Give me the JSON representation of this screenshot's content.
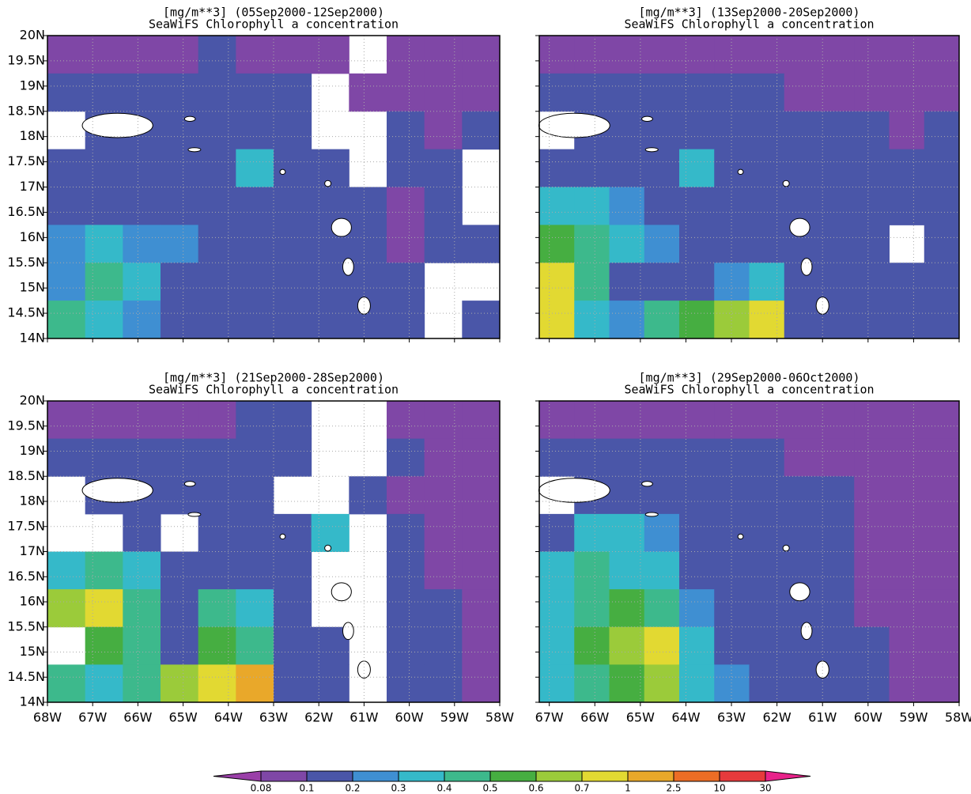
{
  "chart_data": [
    {
      "type": "heatmap",
      "title": "[mg/m**3] (05Sep2000-12Sep2000)",
      "subtitle": "SeaWiFS Chlorophyll a concentration",
      "xlim": [
        -68,
        -58
      ],
      "ylim": [
        14,
        20
      ],
      "grid": true,
      "yticks": [
        {
          "value": 14,
          "label": "14N"
        },
        {
          "value": 14.5,
          "label": "14.5N"
        },
        {
          "value": 15,
          "label": "15N"
        },
        {
          "value": 15.5,
          "label": "15.5N"
        },
        {
          "value": 16,
          "label": "16N"
        },
        {
          "value": 16.5,
          "label": "16.5N"
        },
        {
          "value": 17,
          "label": "17N"
        },
        {
          "value": 17.5,
          "label": "17.5N"
        },
        {
          "value": 18,
          "label": "18N"
        },
        {
          "value": 18.5,
          "label": "18.5N"
        },
        {
          "value": 19,
          "label": "19N"
        },
        {
          "value": 19.5,
          "label": "19.5N"
        },
        {
          "value": 20,
          "label": "20N"
        }
      ],
      "values": [
        [
          0.09,
          0.09,
          0.09,
          0.09,
          0.15,
          0.09,
          0.09,
          0.09,
          null,
          0.09,
          0.09,
          0.09
        ],
        [
          0.15,
          0.15,
          0.15,
          0.15,
          0.15,
          0.15,
          0.15,
          null,
          0.09,
          0.09,
          0.09,
          0.09
        ],
        [
          null,
          0.15,
          0.15,
          0.15,
          0.15,
          0.15,
          0.15,
          null,
          null,
          0.15,
          0.09,
          0.15
        ],
        [
          0.15,
          0.15,
          0.15,
          0.15,
          0.15,
          0.35,
          0.15,
          0.15,
          null,
          0.15,
          0.15,
          null
        ],
        [
          0.15,
          0.15,
          0.15,
          0.15,
          0.15,
          0.15,
          0.15,
          0.15,
          0.15,
          0.09,
          0.15,
          null
        ],
        [
          0.25,
          0.35,
          0.25,
          0.25,
          0.15,
          0.15,
          0.15,
          0.15,
          0.15,
          0.09,
          0.15,
          0.15
        ],
        [
          0.25,
          0.45,
          0.35,
          0.15,
          0.15,
          0.15,
          0.15,
          0.15,
          0.15,
          0.15,
          null,
          null
        ],
        [
          0.45,
          0.35,
          0.25,
          0.15,
          0.15,
          0.15,
          0.15,
          0.15,
          0.15,
          0.15,
          null,
          0.15
        ]
      ]
    },
    {
      "type": "heatmap",
      "title": "[mg/m**3] (13Sep2000-20Sep2000)",
      "subtitle": "SeaWiFS Chlorophyll a concentration",
      "xlim": [
        -67.22,
        -58
      ],
      "ylim": [
        14,
        20
      ],
      "grid": true,
      "values": [
        [
          0.09,
          0.09,
          0.09,
          0.09,
          0.09,
          0.09,
          0.09,
          0.09,
          0.09,
          0.09,
          0.09,
          0.09
        ],
        [
          0.15,
          0.15,
          0.15,
          0.15,
          0.15,
          0.15,
          0.15,
          0.09,
          0.09,
          0.09,
          0.09,
          0.09
        ],
        [
          null,
          0.15,
          0.15,
          0.15,
          0.15,
          0.15,
          0.15,
          0.15,
          0.15,
          0.15,
          0.09,
          0.15
        ],
        [
          0.15,
          0.15,
          0.15,
          0.15,
          0.35,
          0.15,
          0.15,
          0.15,
          0.15,
          0.15,
          0.15,
          0.15
        ],
        [
          0.35,
          0.35,
          0.25,
          0.15,
          0.15,
          0.15,
          0.15,
          0.15,
          0.15,
          0.15,
          0.15,
          0.15
        ],
        [
          0.55,
          0.45,
          0.35,
          0.25,
          0.15,
          0.15,
          0.15,
          0.15,
          0.15,
          0.15,
          null,
          0.15
        ],
        [
          0.85,
          0.45,
          0.15,
          0.15,
          0.15,
          0.25,
          0.35,
          0.15,
          0.15,
          0.15,
          0.15,
          0.15
        ],
        [
          0.85,
          0.35,
          0.25,
          0.45,
          0.55,
          0.65,
          0.85,
          0.15,
          0.15,
          0.15,
          0.15,
          0.15
        ]
      ]
    },
    {
      "type": "heatmap",
      "title": "[mg/m**3] (21Sep2000-28Sep2000)",
      "subtitle": "SeaWiFS Chlorophyll a concentration",
      "xlim": [
        -68,
        -58
      ],
      "ylim": [
        14,
        20
      ],
      "grid": true,
      "xticks": [
        {
          "value": -68,
          "label": "68W"
        },
        {
          "value": -67,
          "label": "67W"
        },
        {
          "value": -66,
          "label": "66W"
        },
        {
          "value": -65,
          "label": "65W"
        },
        {
          "value": -64,
          "label": "64W"
        },
        {
          "value": -63,
          "label": "63W"
        },
        {
          "value": -62,
          "label": "62W"
        },
        {
          "value": -61,
          "label": "61W"
        },
        {
          "value": -60,
          "label": "60W"
        },
        {
          "value": -59,
          "label": "59W"
        },
        {
          "value": -58,
          "label": "58W"
        }
      ],
      "yticks": [
        {
          "value": 14,
          "label": "14N"
        },
        {
          "value": 14.5,
          "label": "14.5N"
        },
        {
          "value": 15,
          "label": "15N"
        },
        {
          "value": 15.5,
          "label": "15.5N"
        },
        {
          "value": 16,
          "label": "16N"
        },
        {
          "value": 16.5,
          "label": "16.5N"
        },
        {
          "value": 17,
          "label": "17N"
        },
        {
          "value": 17.5,
          "label": "17.5N"
        },
        {
          "value": 18,
          "label": "18N"
        },
        {
          "value": 18.5,
          "label": "18.5N"
        },
        {
          "value": 19,
          "label": "19N"
        },
        {
          "value": 19.5,
          "label": "19.5N"
        },
        {
          "value": 20,
          "label": "20N"
        }
      ],
      "values": [
        [
          0.09,
          0.09,
          0.09,
          0.09,
          0.09,
          0.15,
          0.15,
          null,
          null,
          0.09,
          0.09,
          0.09
        ],
        [
          0.15,
          0.15,
          0.15,
          0.15,
          0.15,
          0.15,
          0.15,
          null,
          null,
          0.15,
          0.09,
          0.09
        ],
        [
          null,
          0.15,
          0.15,
          0.15,
          0.15,
          0.15,
          null,
          null,
          0.15,
          0.09,
          0.09,
          0.09
        ],
        [
          null,
          null,
          0.15,
          null,
          0.15,
          0.15,
          0.15,
          0.35,
          null,
          0.15,
          0.09,
          0.09
        ],
        [
          0.35,
          0.45,
          0.35,
          0.15,
          0.15,
          0.15,
          0.15,
          null,
          null,
          0.15,
          0.09,
          0.09
        ],
        [
          0.65,
          0.75,
          0.45,
          0.15,
          0.45,
          0.35,
          0.15,
          null,
          null,
          0.15,
          0.15,
          0.09
        ],
        [
          null,
          0.55,
          0.45,
          0.15,
          0.55,
          0.45,
          0.15,
          0.15,
          null,
          0.15,
          0.15,
          0.09
        ],
        [
          0.45,
          0.35,
          0.45,
          0.65,
          0.75,
          1.5,
          0.15,
          0.15,
          null,
          0.15,
          0.15,
          0.09
        ]
      ]
    },
    {
      "type": "heatmap",
      "title": "[mg/m**3] (29Sep2000-06Oct2000)",
      "subtitle": "SeaWiFS Chlorophyll a concentration",
      "xlim": [
        -67.22,
        -58
      ],
      "ylim": [
        14,
        20
      ],
      "grid": true,
      "xticks": [
        {
          "value": -67,
          "label": "67W"
        },
        {
          "value": -66,
          "label": "66W"
        },
        {
          "value": -65,
          "label": "65W"
        },
        {
          "value": -64,
          "label": "64W"
        },
        {
          "value": -63,
          "label": "63W"
        },
        {
          "value": -62,
          "label": "62W"
        },
        {
          "value": -61,
          "label": "61W"
        },
        {
          "value": -60,
          "label": "60W"
        },
        {
          "value": -59,
          "label": "59W"
        },
        {
          "value": -58,
          "label": "58W"
        }
      ],
      "values": [
        [
          0.09,
          0.09,
          0.09,
          0.09,
          0.09,
          0.09,
          0.09,
          0.09,
          0.09,
          0.09,
          0.09,
          0.09
        ],
        [
          0.15,
          0.15,
          0.15,
          0.15,
          0.15,
          0.15,
          0.15,
          0.09,
          0.09,
          0.09,
          0.09,
          0.09
        ],
        [
          null,
          0.15,
          0.15,
          0.15,
          0.15,
          0.15,
          0.15,
          0.15,
          0.15,
          0.09,
          0.09,
          0.09
        ],
        [
          0.15,
          0.35,
          0.35,
          0.25,
          0.15,
          0.15,
          0.15,
          0.15,
          0.15,
          0.09,
          0.09,
          0.09
        ],
        [
          0.35,
          0.45,
          0.35,
          0.35,
          0.15,
          0.15,
          0.15,
          0.15,
          0.15,
          0.09,
          0.09,
          0.09
        ],
        [
          0.35,
          0.45,
          0.55,
          0.45,
          0.25,
          0.15,
          0.15,
          0.15,
          0.15,
          0.09,
          0.09,
          0.09
        ],
        [
          0.35,
          0.55,
          0.65,
          0.75,
          0.35,
          0.15,
          0.15,
          0.15,
          0.15,
          0.15,
          0.09,
          0.09
        ],
        [
          0.35,
          0.45,
          0.55,
          0.65,
          0.35,
          0.25,
          0.15,
          0.15,
          0.15,
          0.15,
          0.09,
          0.09
        ]
      ]
    },
    {
      "type": "colorbar",
      "levels": [
        0.08,
        0.1,
        0.2,
        0.3,
        0.4,
        0.5,
        0.6,
        0.7,
        1,
        2.5,
        10,
        30
      ],
      "colors": [
        "#9a3fa8",
        "#7f47a6",
        "#4a56a8",
        "#3f8fd2",
        "#35b9c9",
        "#3db98c",
        "#46ae41",
        "#9bcb3a",
        "#e2d932",
        "#e9a82a",
        "#ec6d25",
        "#e63a3c",
        "#e8228a"
      ]
    }
  ]
}
